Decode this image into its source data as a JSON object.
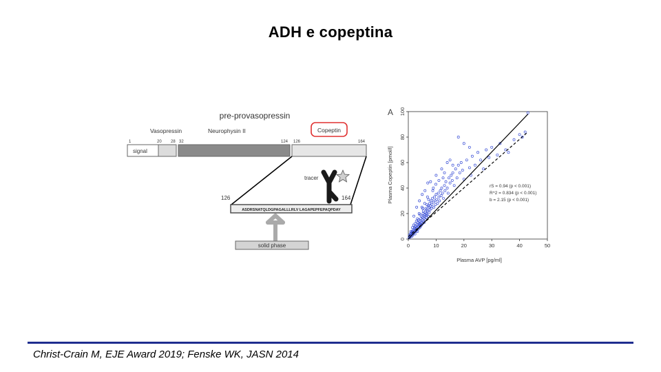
{
  "slide": {
    "title": "ADH e copeptina",
    "citation": "Christ-Crain M, EJE Award 2019; Fenske WK, JASN 2014"
  },
  "diagram": {
    "header": "pre-provasopressin",
    "segment_labels": {
      "vasopressin": "Vasopressin",
      "neurophysin": "Neurophysin II",
      "copeptin": "Copeptin"
    },
    "positions": [
      "1",
      "20",
      "28",
      "32",
      "124",
      "126",
      "164"
    ],
    "signal_label": "signal",
    "tracer_label": "tracer",
    "zoom_start": "126",
    "zoom_end": "164",
    "sequence": "ASDRSNATQLDGPAGALLLRLV  LAGAPEPFEPAQPDAY",
    "solid_phase_label": "solid phase"
  },
  "chart_data": {
    "type": "scatter",
    "panel_label": "A",
    "xlabel": "Plasma AVP [pg/ml]",
    "ylabel": "Plasma Copeptin [pmol/l]",
    "xlim": [
      0,
      50
    ],
    "ylim": [
      0,
      100
    ],
    "xticks": [
      "0",
      "10",
      "20",
      "30",
      "40",
      "50"
    ],
    "yticks": [
      "0",
      "20",
      "40",
      "60",
      "80",
      "100"
    ],
    "grid": false,
    "point_color": "#3a4fd6",
    "stats": [
      "rS = 0.94 (p < 0.001)",
      "R^2 = 0.834 (p < 0.001)",
      "b = 2.15 (p < 0.001)"
    ],
    "fit_solid": [
      [
        0,
        0
      ],
      [
        43,
        98
      ]
    ],
    "fit_dashed": [
      [
        0,
        2
      ],
      [
        43,
        84
      ]
    ],
    "points": [
      [
        0.3,
        1
      ],
      [
        0.5,
        2
      ],
      [
        0.4,
        3
      ],
      [
        0.6,
        1.5
      ],
      [
        0.8,
        2.5
      ],
      [
        0.7,
        4
      ],
      [
        1,
        3
      ],
      [
        1.1,
        5
      ],
      [
        1.2,
        2
      ],
      [
        0.9,
        6
      ],
      [
        1.3,
        4
      ],
      [
        1.5,
        3
      ],
      [
        1.4,
        6
      ],
      [
        1.6,
        5
      ],
      [
        1.8,
        4
      ],
      [
        1.7,
        7
      ],
      [
        2,
        5
      ],
      [
        2.1,
        8
      ],
      [
        2.2,
        6
      ],
      [
        2.4,
        4
      ],
      [
        2.3,
        9
      ],
      [
        2.5,
        7
      ],
      [
        2.7,
        6
      ],
      [
        2.6,
        10
      ],
      [
        2.8,
        8
      ],
      [
        3,
        7
      ],
      [
        3.1,
        11
      ],
      [
        3.2,
        9
      ],
      [
        3.3,
        6
      ],
      [
        3.5,
        10
      ],
      [
        3.4,
        13
      ],
      [
        3.6,
        8
      ],
      [
        3.8,
        12
      ],
      [
        3.7,
        15
      ],
      [
        4,
        11
      ],
      [
        4.1,
        9
      ],
      [
        4.2,
        14
      ],
      [
        4.3,
        12
      ],
      [
        4.5,
        16
      ],
      [
        4.4,
        10
      ],
      [
        4.6,
        13
      ],
      [
        4.8,
        18
      ],
      [
        4.7,
        11
      ],
      [
        5,
        15
      ],
      [
        5.1,
        12
      ],
      [
        5.2,
        17
      ],
      [
        5.3,
        20
      ],
      [
        5.5,
        14
      ],
      [
        5.4,
        22
      ],
      [
        5.6,
        16
      ],
      [
        5.8,
        19
      ],
      [
        5.7,
        13
      ],
      [
        6,
        18
      ],
      [
        6.1,
        21
      ],
      [
        6.2,
        15
      ],
      [
        6.3,
        24
      ],
      [
        6.5,
        20
      ],
      [
        6.4,
        17
      ],
      [
        6.6,
        23
      ],
      [
        6.8,
        19
      ],
      [
        7,
        22
      ],
      [
        7.1,
        26
      ],
      [
        7.2,
        18
      ],
      [
        7.4,
        25
      ],
      [
        7.5,
        21
      ],
      [
        7.7,
        28
      ],
      [
        7.8,
        23
      ],
      [
        8,
        26
      ],
      [
        8.2,
        30
      ],
      [
        8.3,
        24
      ],
      [
        8.5,
        27
      ],
      [
        8.7,
        32
      ],
      [
        9,
        29
      ],
      [
        9.2,
        25
      ],
      [
        9.4,
        33
      ],
      [
        9.6,
        30
      ],
      [
        9.8,
        27
      ],
      [
        10,
        35
      ],
      [
        10.2,
        31
      ],
      [
        10.5,
        28
      ],
      [
        10.8,
        36
      ],
      [
        11,
        33
      ],
      [
        11.2,
        30
      ],
      [
        11.5,
        38
      ],
      [
        11.8,
        34
      ],
      [
        12,
        40
      ],
      [
        12.3,
        36
      ],
      [
        12.6,
        32
      ],
      [
        13,
        42
      ],
      [
        13.2,
        38
      ],
      [
        13.5,
        45
      ],
      [
        14,
        40
      ],
      [
        14.3,
        36
      ],
      [
        14.6,
        48
      ],
      [
        15,
        44
      ],
      [
        15.4,
        50
      ],
      [
        15.8,
        46
      ],
      [
        16,
        52
      ],
      [
        16.5,
        42
      ],
      [
        17,
        55
      ],
      [
        17.5,
        48
      ],
      [
        18,
        58
      ],
      [
        18.5,
        52
      ],
      [
        19,
        60
      ],
      [
        19.5,
        54
      ],
      [
        20,
        47
      ],
      [
        21,
        62
      ],
      [
        22,
        56
      ],
      [
        22.5,
        50
      ],
      [
        23,
        65
      ],
      [
        24,
        58
      ],
      [
        25,
        68
      ],
      [
        26,
        62
      ],
      [
        27,
        55
      ],
      [
        28,
        70
      ],
      [
        29,
        64
      ],
      [
        30,
        72
      ],
      [
        32,
        66
      ],
      [
        33,
        75
      ],
      [
        35,
        70
      ],
      [
        38,
        78
      ],
      [
        40,
        82
      ],
      [
        42,
        84
      ],
      [
        43,
        99
      ],
      [
        41,
        80
      ],
      [
        36,
        68
      ],
      [
        4,
        30
      ],
      [
        6,
        38
      ],
      [
        8,
        45
      ],
      [
        5,
        35
      ],
      [
        7,
        44
      ],
      [
        9,
        40
      ],
      [
        10,
        50
      ],
      [
        12,
        55
      ],
      [
        14,
        60
      ],
      [
        3,
        25
      ],
      [
        2,
        18
      ],
      [
        18,
        80
      ],
      [
        20,
        75
      ],
      [
        22,
        72
      ],
      [
        15,
        62
      ],
      [
        11,
        46
      ],
      [
        13,
        52
      ],
      [
        16,
        58
      ],
      [
        3.9,
        20
      ],
      [
        5.9,
        28
      ],
      [
        2.9,
        14
      ],
      [
        1.9,
        11
      ],
      [
        6.9,
        33
      ],
      [
        4.9,
        25
      ],
      [
        8.8,
        38
      ],
      [
        9.9,
        43
      ],
      [
        12.5,
        48
      ],
      [
        7.3,
        31
      ],
      [
        6.7,
        27
      ],
      [
        5.2,
        24
      ],
      [
        4.2,
        19
      ],
      [
        3.3,
        16
      ],
      [
        2.4,
        12
      ],
      [
        1.5,
        9
      ]
    ]
  }
}
